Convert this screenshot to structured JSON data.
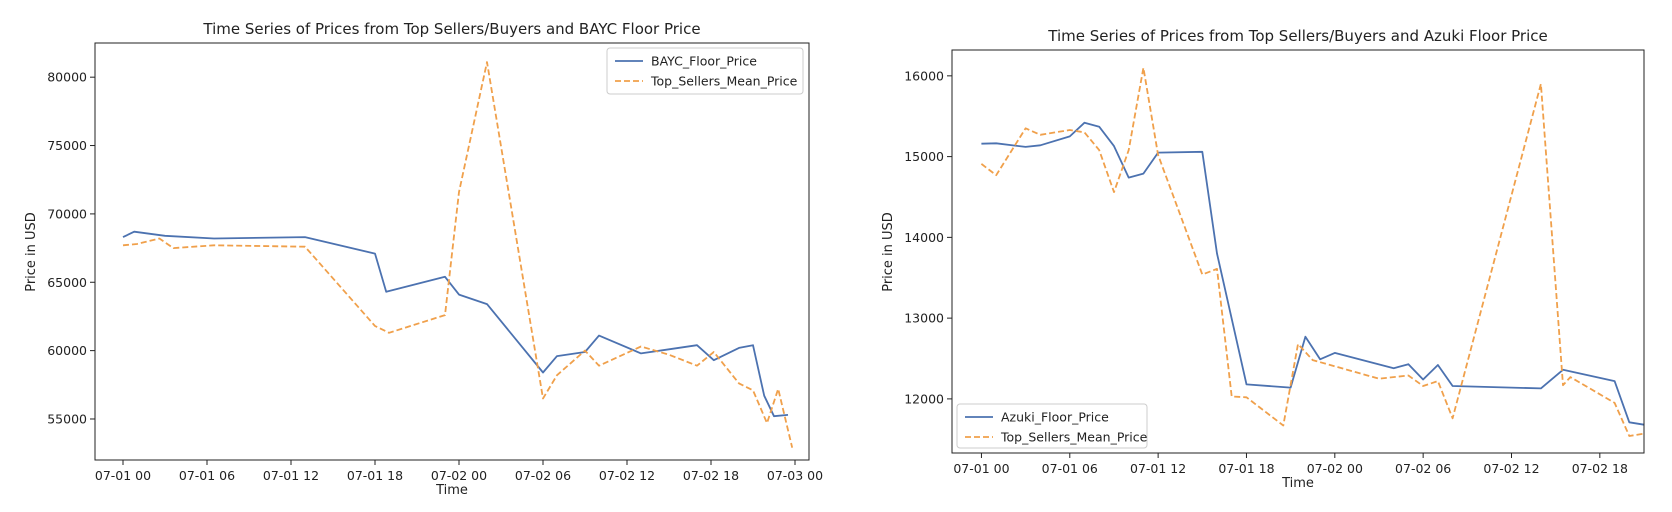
{
  "chart_data": [
    {
      "type": "line",
      "title": "Time Series of Prices from Top Sellers/Buyers and BAYC Floor Price",
      "xlabel": "Time",
      "ylabel": "Price in USD",
      "x_unit": "hours since 07-01 00",
      "xlim": [
        -2,
        49
      ],
      "ylim": [
        52000,
        82500
      ],
      "x_ticks": [
        {
          "x": 0,
          "label": "07-01 00"
        },
        {
          "x": 6,
          "label": "07-01 06"
        },
        {
          "x": 12,
          "label": "07-01 12"
        },
        {
          "x": 18,
          "label": "07-01 18"
        },
        {
          "x": 24,
          "label": "07-02 00"
        },
        {
          "x": 30,
          "label": "07-02 06"
        },
        {
          "x": 36,
          "label": "07-02 12"
        },
        {
          "x": 42,
          "label": "07-02 18"
        },
        {
          "x": 48,
          "label": "07-03 00"
        }
      ],
      "y_ticks": [
        {
          "y": 55000,
          "label": "55000"
        },
        {
          "y": 60000,
          "label": "60000"
        },
        {
          "y": 65000,
          "label": "65000"
        },
        {
          "y": 70000,
          "label": "70000"
        },
        {
          "y": 75000,
          "label": "75000"
        },
        {
          "y": 80000,
          "label": "80000"
        }
      ],
      "legend_position": "top-right",
      "grid": false,
      "series": [
        {
          "name": "BAYC_Floor_Price",
          "color": "#4c72b0",
          "dash": "solid",
          "points": [
            [
              0,
              68300
            ],
            [
              0.8,
              68700
            ],
            [
              3,
              68400
            ],
            [
              6.5,
              68200
            ],
            [
              13,
              68300
            ],
            [
              18,
              67100
            ],
            [
              18.8,
              64300
            ],
            [
              23,
              65400
            ],
            [
              24,
              64100
            ],
            [
              26,
              63400
            ],
            [
              30,
              58400
            ],
            [
              31,
              59600
            ],
            [
              33,
              59900
            ],
            [
              34,
              61100
            ],
            [
              37,
              59800
            ],
            [
              39,
              60100
            ],
            [
              41,
              60400
            ],
            [
              42.2,
              59300
            ],
            [
              44,
              60200
            ],
            [
              45,
              60400
            ],
            [
              45.8,
              56700
            ],
            [
              46.5,
              55200
            ],
            [
              47.5,
              55300
            ]
          ]
        },
        {
          "name": "Top_Sellers_Mean_Price",
          "color": "#f0a04b",
          "dash": "dashed",
          "points": [
            [
              0,
              67700
            ],
            [
              1,
              67800
            ],
            [
              2.6,
              68200
            ],
            [
              3.6,
              67500
            ],
            [
              6.5,
              67700
            ],
            [
              13,
              67600
            ],
            [
              18,
              61800
            ],
            [
              19,
              61300
            ],
            [
              23,
              62600
            ],
            [
              24,
              71600
            ],
            [
              26,
              81100
            ],
            [
              30,
              56500
            ],
            [
              31,
              58200
            ],
            [
              33,
              60000
            ],
            [
              34,
              58900
            ],
            [
              37,
              60300
            ],
            [
              39,
              59700
            ],
            [
              41,
              58900
            ],
            [
              42.2,
              59900
            ],
            [
              44,
              57600
            ],
            [
              45,
              57100
            ],
            [
              46,
              54700
            ],
            [
              46.8,
              57200
            ],
            [
              47.8,
              52900
            ]
          ]
        }
      ]
    },
    {
      "type": "line",
      "title": "Time Series of Prices from Top Sellers/Buyers and Azuki Floor Price",
      "xlabel": "Time",
      "ylabel": "Price in USD",
      "x_unit": "hours since 07-01 00",
      "xlim": [
        -2,
        45
      ],
      "ylim": [
        11330,
        16320
      ],
      "x_ticks": [
        {
          "x": 0,
          "label": "07-01 00"
        },
        {
          "x": 6,
          "label": "07-01 06"
        },
        {
          "x": 12,
          "label": "07-01 12"
        },
        {
          "x": 18,
          "label": "07-01 18"
        },
        {
          "x": 24,
          "label": "07-02 00"
        },
        {
          "x": 30,
          "label": "07-02 06"
        },
        {
          "x": 36,
          "label": "07-02 12"
        },
        {
          "x": 42,
          "label": "07-02 18"
        }
      ],
      "y_ticks": [
        {
          "y": 12000,
          "label": "12000"
        },
        {
          "y": 13000,
          "label": "13000"
        },
        {
          "y": 14000,
          "label": "14000"
        },
        {
          "y": 15000,
          "label": "15000"
        },
        {
          "y": 16000,
          "label": "16000"
        }
      ],
      "legend_position": "bottom-left",
      "grid": false,
      "series": [
        {
          "name": "Azuki_Floor_Price",
          "color": "#4c72b0",
          "dash": "solid",
          "points": [
            [
              0,
              15160
            ],
            [
              1,
              15165
            ],
            [
              3,
              15120
            ],
            [
              4,
              15140
            ],
            [
              6,
              15250
            ],
            [
              7,
              15420
            ],
            [
              8,
              15370
            ],
            [
              9,
              15130
            ],
            [
              10,
              14740
            ],
            [
              11,
              14790
            ],
            [
              12,
              15050
            ],
            [
              15,
              15060
            ],
            [
              16,
              13800
            ],
            [
              18,
              12180
            ],
            [
              21,
              12140
            ],
            [
              22,
              12770
            ],
            [
              23,
              12490
            ],
            [
              24,
              12570
            ],
            [
              28,
              12380
            ],
            [
              29,
              12430
            ],
            [
              30,
              12240
            ],
            [
              31,
              12420
            ],
            [
              32,
              12160
            ],
            [
              38,
              12130
            ],
            [
              39.5,
              12360
            ],
            [
              43,
              12220
            ],
            [
              44,
              11710
            ],
            [
              45,
              11680
            ]
          ]
        },
        {
          "name": "Top_Sellers_Mean_Price",
          "color": "#f0a04b",
          "dash": "dashed",
          "points": [
            [
              0,
              14910
            ],
            [
              1,
              14770
            ],
            [
              3,
              15350
            ],
            [
              4,
              15270
            ],
            [
              6,
              15330
            ],
            [
              7,
              15300
            ],
            [
              8,
              15080
            ],
            [
              9,
              14560
            ],
            [
              10,
              15080
            ],
            [
              11,
              16100
            ],
            [
              12,
              15020
            ],
            [
              15,
              13540
            ],
            [
              16,
              13610
            ],
            [
              17,
              12030
            ],
            [
              18,
              12020
            ],
            [
              20.5,
              11670
            ],
            [
              21.5,
              12680
            ],
            [
              22.5,
              12480
            ],
            [
              27,
              12250
            ],
            [
              29,
              12290
            ],
            [
              30,
              12160
            ],
            [
              31,
              12220
            ],
            [
              32,
              11760
            ],
            [
              38,
              15900
            ],
            [
              39.5,
              12170
            ],
            [
              40,
              12270
            ],
            [
              43,
              11950
            ],
            [
              44,
              11540
            ],
            [
              45,
              11570
            ]
          ]
        }
      ]
    }
  ]
}
